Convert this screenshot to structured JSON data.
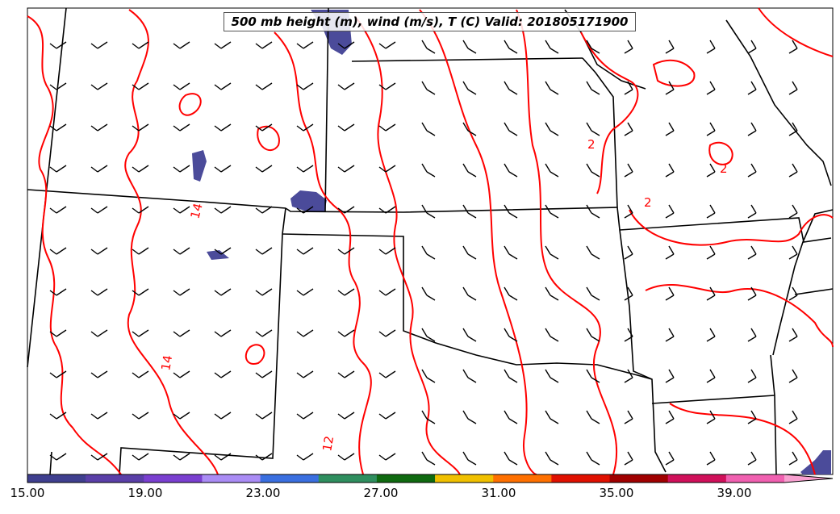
{
  "title": "500 mb height (m), wind (m/s), T (C) Valid: 201805171900",
  "contour_labels": [
    "14",
    "14",
    "12",
    "2",
    "2",
    "2"
  ],
  "colorbar": {
    "labels": [
      "15.00",
      "19.00",
      "23.00",
      "27.00",
      "31.00",
      "35.00",
      "39.00"
    ],
    "colors": [
      "#3f3f8f",
      "#5a3fa8",
      "#7a3fd0",
      "#aa8cf5",
      "#3a6fe0",
      "#2f8f5f",
      "#0f6a10",
      "#f0c000",
      "#ff7000",
      "#e01000",
      "#a00000",
      "#d0105a",
      "#f060b0",
      "#f8a0d0"
    ]
  },
  "colors": {
    "contour": "#ff0000",
    "boundary": "#000000",
    "wind_barb": "#000000",
    "shading": "#4b4b9a"
  }
}
